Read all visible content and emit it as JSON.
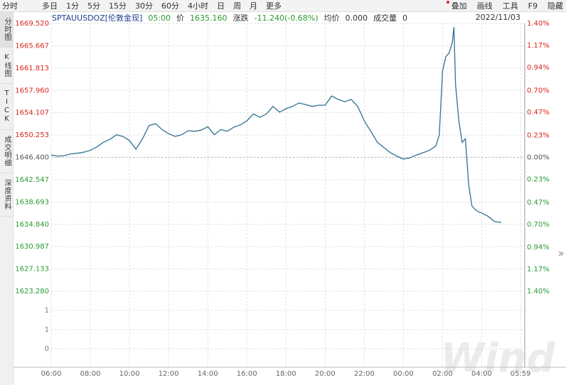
{
  "toolbar": {
    "periods": [
      "分时",
      "多日",
      "1分",
      "5分",
      "15分",
      "30分",
      "60分",
      "4小时",
      "日",
      "周",
      "月",
      "更多"
    ],
    "actions": [
      "叠加",
      "画线",
      "工具",
      "F9",
      "隐藏"
    ]
  },
  "quote_bar": {
    "symbol": "SPTAUUSDOZ[伦敦金现]",
    "time": "05:00",
    "price_label": "价",
    "price": "1635.160",
    "change_label": "涨跌",
    "change": "-11.240(-0.68%)",
    "avg_label": "均价",
    "avg": "0.000",
    "volume_label": "成交量",
    "volume": "0",
    "date": "2022/11/03"
  },
  "sidebar": {
    "tabs": [
      "分时图",
      "K线图",
      "TICK",
      "成交明细",
      "深度资料"
    ]
  },
  "chart_data": {
    "type": "line",
    "color": "#2f718f",
    "rise_color": "#d7261e",
    "fall_color": "#2b9a34",
    "grid": true,
    "watermark": "Wind",
    "x": [
      "06:00",
      "06:20",
      "06:40",
      "07:00",
      "07:20",
      "07:40",
      "08:00",
      "08:20",
      "08:40",
      "09:00",
      "09:20",
      "09:40",
      "10:00",
      "10:20",
      "10:40",
      "11:00",
      "11:20",
      "11:40",
      "12:00",
      "12:20",
      "12:40",
      "13:00",
      "13:20",
      "13:40",
      "14:00",
      "14:20",
      "14:40",
      "15:00",
      "15:20",
      "15:40",
      "16:00",
      "16:20",
      "16:40",
      "17:00",
      "17:20",
      "17:40",
      "18:00",
      "18:20",
      "18:40",
      "19:00",
      "19:20",
      "19:40",
      "20:00",
      "20:20",
      "20:40",
      "21:00",
      "21:20",
      "21:40",
      "22:00",
      "22:20",
      "22:40",
      "23:00",
      "23:20",
      "23:40",
      "00:00",
      "00:20",
      "00:40",
      "01:00",
      "01:20",
      "01:40",
      "01:50",
      "02:00",
      "02:10",
      "02:20",
      "02:30",
      "02:35",
      "02:40",
      "02:50",
      "03:00",
      "03:10",
      "03:20",
      "03:30",
      "03:40",
      "03:50",
      "04:00",
      "04:20",
      "04:40",
      "05:00"
    ],
    "values": [
      1646.8,
      1646.6,
      1646.7,
      1647.0,
      1647.1,
      1647.3,
      1647.6,
      1648.2,
      1649.0,
      1649.5,
      1650.3,
      1650.0,
      1649.3,
      1647.8,
      1649.6,
      1651.9,
      1652.2,
      1651.2,
      1650.5,
      1650.0,
      1650.3,
      1651.0,
      1650.9,
      1651.1,
      1651.7,
      1650.3,
      1651.2,
      1650.9,
      1651.6,
      1652.0,
      1652.7,
      1653.9,
      1653.3,
      1653.9,
      1655.2,
      1654.2,
      1654.8,
      1655.2,
      1655.8,
      1655.5,
      1655.2,
      1655.4,
      1655.4,
      1657.0,
      1656.4,
      1656.0,
      1656.4,
      1655.2,
      1652.7,
      1650.9,
      1649.0,
      1648.1,
      1647.2,
      1646.6,
      1646.1,
      1646.3,
      1646.8,
      1647.2,
      1647.6,
      1648.4,
      1650.3,
      1661.3,
      1663.8,
      1664.4,
      1666.2,
      1668.9,
      1658.9,
      1652.7,
      1649.0,
      1649.6,
      1641.7,
      1638.0,
      1637.4,
      1637.0,
      1636.8,
      1636.2,
      1635.3,
      1635.16
    ],
    "xlim": [
      "06:00",
      "05:59"
    ],
    "xticks": [
      "06:00",
      "08:00",
      "10:00",
      "12:00",
      "14:00",
      "16:00",
      "18:00",
      "20:00",
      "22:00",
      "00:00",
      "02:00",
      "04:00",
      "05:59"
    ],
    "ylim": [
      1623.28,
      1669.52
    ],
    "yticks": [
      {
        "value": 1669.52,
        "label": "1669.520"
      },
      1665.667,
      1661.813,
      {
        "value": 1657.96,
        "label": "1657.960"
      },
      1654.107,
      1650.253,
      {
        "value": 1646.4,
        "label": "1646.400"
      },
      1642.547,
      1638.693,
      {
        "value": 1634.84,
        "label": "1634.840"
      },
      1630.987,
      1627.133,
      {
        "value": 1623.28,
        "label": "1623.280"
      }
    ],
    "y2lim": [
      -1.4,
      1.4
    ],
    "y2ticks": [
      {
        "value": 1.4,
        "label": "1.40%"
      },
      {
        "value": 1.17,
        "label": "1.17%"
      },
      {
        "value": 0.94,
        "label": "0.94%"
      },
      {
        "value": 0.7,
        "label": "0.70%"
      },
      {
        "value": 0.47,
        "label": "0.47%"
      },
      {
        "value": 0.23,
        "label": "0.23%"
      },
      {
        "value": 0,
        "label": "0.00%"
      },
      {
        "value": -0.23,
        "label": "0.23%"
      },
      {
        "value": -0.47,
        "label": "0.47%"
      },
      {
        "value": -0.7,
        "label": "0.70%"
      },
      {
        "value": -0.94,
        "label": "0.94%"
      },
      {
        "value": -1.17,
        "label": "1.17%"
      },
      {
        "value": -1.4,
        "label": "1.40%"
      }
    ],
    "volume_ylim": [
      0,
      1.8
    ],
    "volume_ticks": [
      {
        "value": 1.2,
        "label": "1"
      },
      {
        "value": 0.6,
        "label": "1"
      },
      0
    ]
  }
}
